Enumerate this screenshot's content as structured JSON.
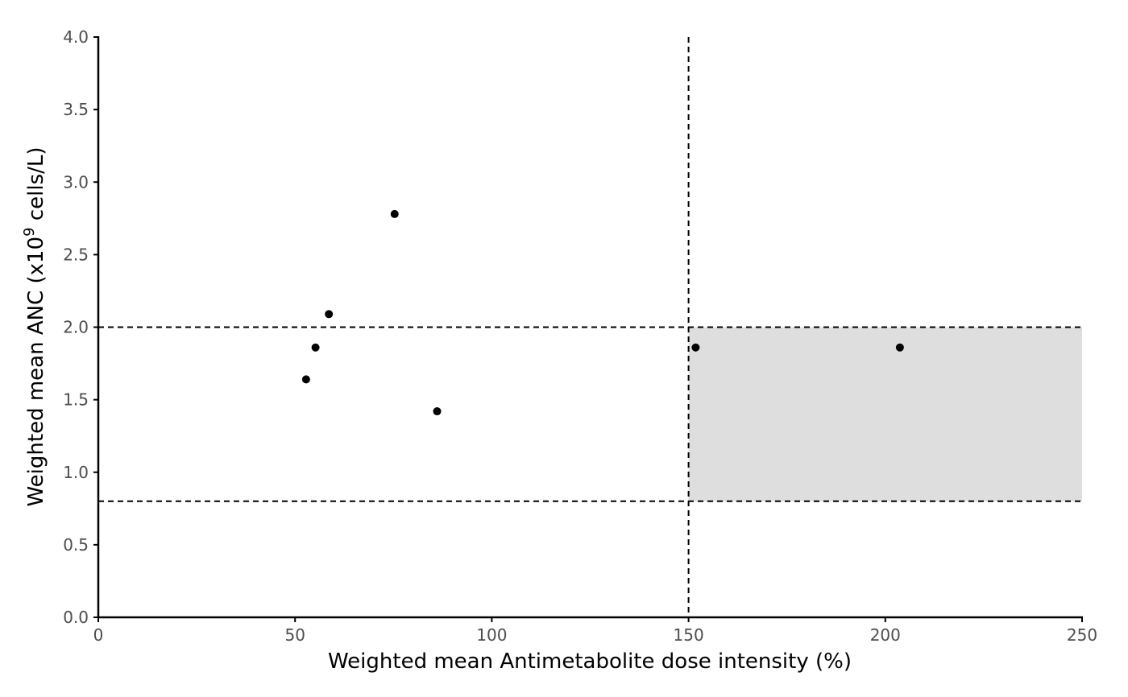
{
  "chart_data": {
    "type": "scatter",
    "title": "",
    "xlabel": "Weighted mean Antimetabolite dose intensity (%)",
    "ylabel_parts": {
      "before": "Weighted mean ANC (x10",
      "superscript": "9",
      "after": " cells/L)"
    },
    "xlim": [
      0,
      250
    ],
    "ylim": [
      0,
      4
    ],
    "x_ticks": [
      0,
      50,
      100,
      150,
      200,
      250
    ],
    "x_tick_labels": [
      "0",
      "50",
      "100",
      "150",
      "200",
      "250"
    ],
    "y_ticks": [
      0,
      0.5,
      1,
      1.5,
      2,
      2.5,
      3,
      3.5,
      4
    ],
    "y_tick_labels": [
      "0.0",
      "0.5",
      "1.0",
      "1.5",
      "2.0",
      "2.5",
      "3.0",
      "3.5",
      "4.0"
    ],
    "grid": false,
    "points": [
      {
        "x": 52.8,
        "y": 1.64
      },
      {
        "x": 55.2,
        "y": 1.86
      },
      {
        "x": 58.6,
        "y": 2.09
      },
      {
        "x": 75.3,
        "y": 2.78
      },
      {
        "x": 86.1,
        "y": 1.42
      },
      {
        "x": 151.8,
        "y": 1.86
      },
      {
        "x": 203.7,
        "y": 1.86
      }
    ],
    "reference_lines": {
      "horizontal": [
        0.8,
        2.0
      ],
      "vertical": [
        150
      ]
    },
    "target_region": {
      "x": [
        150,
        250
      ],
      "y": [
        0.8,
        2.0
      ],
      "color": "#dedede"
    },
    "colors": {
      "point": "#000000",
      "axis": "#000000",
      "tick_label": "#4d4d4d",
      "reference_line": "#000000"
    }
  }
}
